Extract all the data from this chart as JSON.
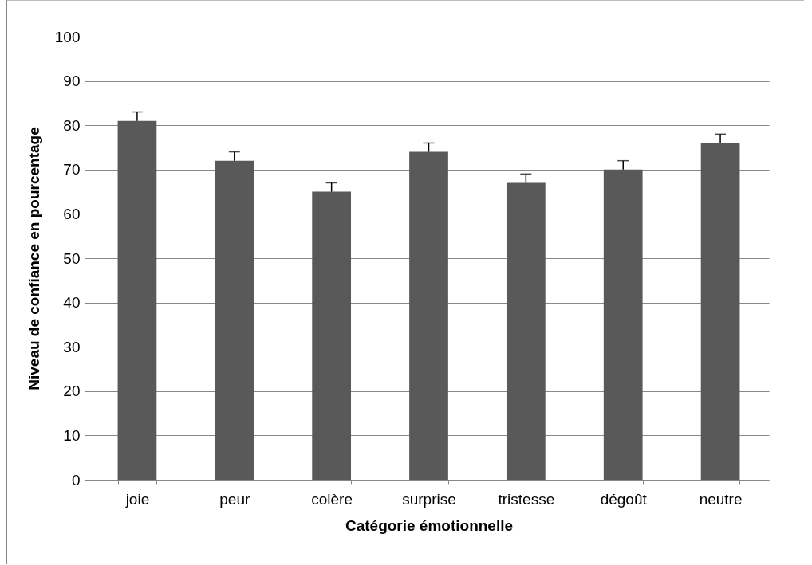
{
  "chart_data": {
    "type": "bar",
    "xlabel": "Catégorie émotionnelle",
    "ylabel": "Niveau de confiance en pourcentage",
    "categories": [
      "joie",
      "peur",
      "colère",
      "surprise",
      "tristesse",
      "dégoût",
      "neutre"
    ],
    "values": [
      81,
      72,
      65,
      74,
      67,
      70,
      76
    ],
    "errors": [
      [
        81,
        83
      ],
      [
        72,
        74
      ],
      [
        65,
        67
      ],
      [
        74,
        76
      ],
      [
        67,
        69
      ],
      [
        70,
        72
      ],
      [
        76,
        78
      ]
    ],
    "color": "#595959",
    "ylim": [
      0,
      100
    ],
    "yticks": [
      0,
      10,
      20,
      30,
      40,
      50,
      60,
      70,
      80,
      90,
      100
    ],
    "grid": "y"
  }
}
